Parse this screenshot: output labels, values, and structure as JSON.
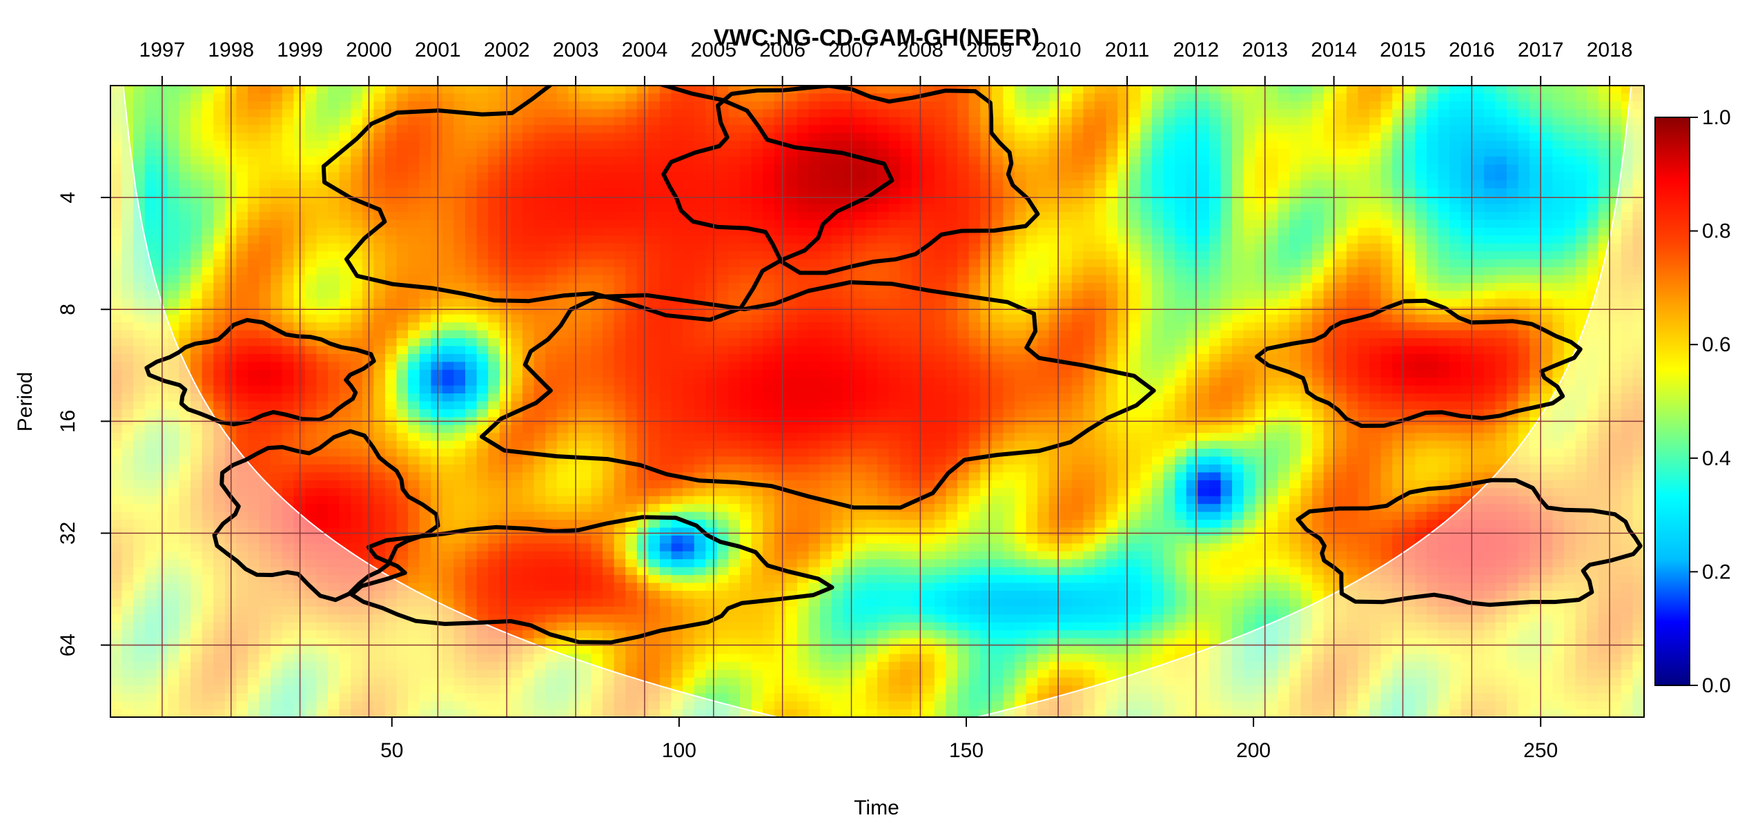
{
  "chart_data": {
    "type": "heatmap",
    "title": "VWC:NG-CD-GAM-GH(NEER)",
    "xlabel": "Time",
    "ylabel": "Period",
    "xlim": [
      1,
      268
    ],
    "x_ticks": [
      50,
      100,
      150,
      200,
      250
    ],
    "top_axis": {
      "labels": [
        "1997",
        "1998",
        "1999",
        "2000",
        "2001",
        "2002",
        "2003",
        "2004",
        "2005",
        "2006",
        "2007",
        "2008",
        "2009",
        "2010",
        "2011",
        "2012",
        "2013",
        "2014",
        "2015",
        "2016",
        "2017",
        "2018"
      ],
      "positions": [
        10,
        22,
        34,
        46,
        58,
        70,
        82,
        94,
        106,
        118,
        130,
        142,
        154,
        166,
        178,
        190,
        202,
        214,
        226,
        238,
        250,
        262
      ]
    },
    "y_scale": "log2",
    "y_reversed": true,
    "ylim": [
      2,
      100
    ],
    "y_ticks": [
      4,
      8,
      16,
      32,
      64
    ],
    "colorbar": {
      "range": [
        0,
        1
      ],
      "ticks": [
        "0.0",
        "0.2",
        "0.4",
        "0.6",
        "0.8",
        "1.0"
      ],
      "colors": [
        "#000080",
        "#0000ff",
        "#00bfff",
        "#00ffff",
        "#7fff7f",
        "#ffff00",
        "#ffa500",
        "#ff4500",
        "#ff0000",
        "#8b0000"
      ]
    },
    "grid": true,
    "cone_of_influence": true,
    "significance_contours": true,
    "regions": [
      {
        "t": [
          20,
          55
        ],
        "period": [
          18,
          45
        ],
        "coherence": 0.9
      },
      {
        "t": [
          45,
          120
        ],
        "period": [
          30,
          60
        ],
        "coherence": 0.85
      },
      {
        "t": [
          40,
          130
        ],
        "period": [
          2,
          8
        ],
        "coherence": 0.85
      },
      {
        "t": [
          70,
          175
        ],
        "period": [
          7,
          25
        ],
        "coherence": 0.9
      },
      {
        "t": [
          100,
          160
        ],
        "period": [
          2,
          6
        ],
        "coherence": 0.95
      },
      {
        "t": [
          10,
          45
        ],
        "period": [
          9,
          16
        ],
        "coherence": 0.9
      },
      {
        "t": [
          205,
          255
        ],
        "period": [
          8,
          16
        ],
        "coherence": 0.92
      },
      {
        "t": [
          185,
          200
        ],
        "period": [
          20,
          30
        ],
        "coherence": 0.1
      },
      {
        "t": [
          50,
          70
        ],
        "period": [
          10,
          15
        ],
        "coherence": 0.15
      },
      {
        "t": [
          90,
          110
        ],
        "period": [
          30,
          40
        ],
        "coherence": 0.15
      },
      {
        "t": [
          120,
          200
        ],
        "period": [
          40,
          60
        ],
        "coherence": 0.25
      },
      {
        "t": [
          225,
          260
        ],
        "period": [
          2,
          6
        ],
        "coherence": 0.2
      },
      {
        "t": [
          2,
          15
        ],
        "period": [
          2,
          8
        ],
        "coherence": 0.35
      },
      {
        "t": [
          180,
          200
        ],
        "period": [
          2,
          8
        ],
        "coherence": 0.3
      },
      {
        "t": [
          210,
          265
        ],
        "period": [
          24,
          50
        ],
        "coherence": 0.88
      }
    ]
  }
}
